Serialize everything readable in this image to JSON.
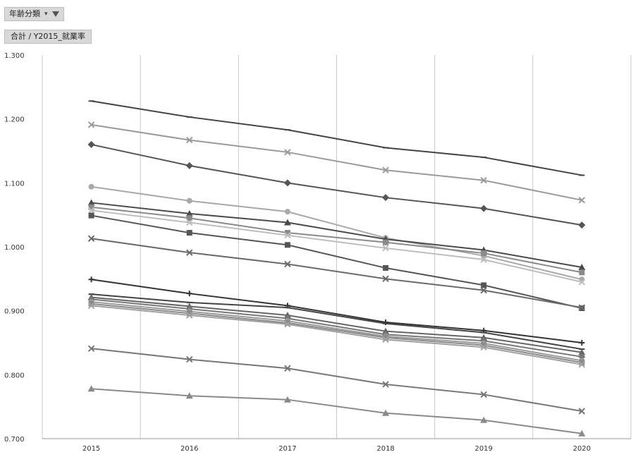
{
  "filter": {
    "label": "年齢分類",
    "dropdown_icon": "chevron-down-icon",
    "filter_icon": "funnel-icon"
  },
  "value_field": "合計 / Y2015_就業率",
  "chart_data": {
    "type": "line",
    "x": [
      "2015",
      "2016",
      "2017",
      "2018",
      "2019",
      "2020"
    ],
    "ylim": [
      0.7,
      1.3
    ],
    "yticks": [
      "0.700",
      "0.800",
      "0.900",
      "1.000",
      "1.100",
      "1.200",
      "1.300"
    ],
    "grid": "vertical",
    "series": [
      {
        "marker": "dash",
        "color": "#444444",
        "values": [
          1.228,
          1.203,
          1.183,
          1.155,
          1.14,
          1.112
        ]
      },
      {
        "marker": "x",
        "color": "#9a9a9a",
        "values": [
          1.191,
          1.167,
          1.148,
          1.12,
          1.104,
          1.073
        ]
      },
      {
        "marker": "diamond",
        "color": "#555555",
        "values": [
          1.16,
          1.127,
          1.1,
          1.077,
          1.06,
          1.034
        ]
      },
      {
        "marker": "circle",
        "color": "#a8a8a8",
        "values": [
          1.094,
          1.072,
          1.055,
          1.014,
          0.986,
          0.949
        ]
      },
      {
        "marker": "triangle",
        "color": "#4a4a4a",
        "values": [
          1.069,
          1.052,
          1.038,
          1.012,
          0.995,
          0.968
        ]
      },
      {
        "marker": "square",
        "color": "#8a8a8a",
        "values": [
          1.062,
          1.045,
          1.022,
          1.007,
          0.99,
          0.96
        ]
      },
      {
        "marker": "x",
        "color": "#bdbdbd",
        "values": [
          1.057,
          1.038,
          1.018,
          0.998,
          0.98,
          0.945
        ]
      },
      {
        "marker": "square",
        "color": "#555555",
        "values": [
          1.049,
          1.022,
          1.003,
          0.967,
          0.94,
          0.904
        ]
      },
      {
        "marker": "x",
        "color": "#6a6a6a",
        "values": [
          1.013,
          0.991,
          0.973,
          0.95,
          0.932,
          0.905
        ]
      },
      {
        "marker": "plus",
        "color": "#333333",
        "values": [
          0.949,
          0.927,
          0.908,
          0.882,
          0.869,
          0.85
        ]
      },
      {
        "marker": "dash",
        "color": "#444444",
        "values": [
          0.926,
          0.913,
          0.905,
          0.88,
          0.866,
          0.84
        ]
      },
      {
        "marker": "triangle",
        "color": "#666666",
        "values": [
          0.921,
          0.907,
          0.893,
          0.868,
          0.858,
          0.835
        ]
      },
      {
        "marker": "diamond",
        "color": "#777777",
        "values": [
          0.918,
          0.903,
          0.888,
          0.863,
          0.853,
          0.828
        ]
      },
      {
        "marker": "circle",
        "color": "#9a9a9a",
        "values": [
          0.914,
          0.899,
          0.884,
          0.86,
          0.849,
          0.822
        ]
      },
      {
        "marker": "square",
        "color": "#8a8a8a",
        "values": [
          0.911,
          0.896,
          0.881,
          0.858,
          0.846,
          0.819
        ]
      },
      {
        "marker": "x",
        "color": "#a0a0a0",
        "values": [
          0.908,
          0.893,
          0.879,
          0.855,
          0.843,
          0.816
        ]
      },
      {
        "marker": "x",
        "color": "#777777",
        "values": [
          0.841,
          0.824,
          0.81,
          0.785,
          0.769,
          0.743
        ]
      },
      {
        "marker": "triangle",
        "color": "#8a8a8a",
        "values": [
          0.778,
          0.767,
          0.761,
          0.74,
          0.729,
          0.708
        ]
      }
    ]
  }
}
